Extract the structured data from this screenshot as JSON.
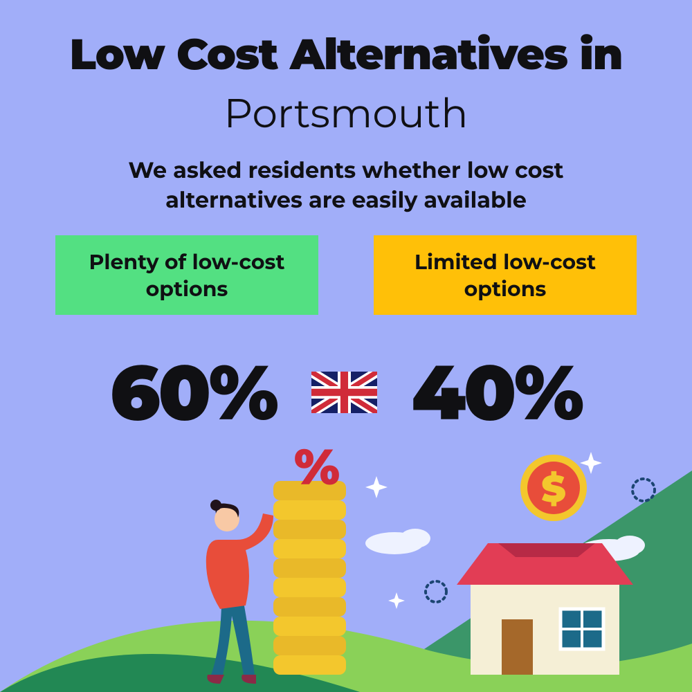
{
  "background_color": "#a1aef9",
  "title_color": "#101013",
  "text_color": "#101013",
  "title_main": "Low Cost Alternatives in",
  "title_main_fontsize": 62,
  "title_sub": "Portsmouth",
  "title_sub_fontsize": 58,
  "subtitle": "We asked residents whether low cost alternatives are easily available",
  "subtitle_fontsize": 32,
  "options": {
    "left": {
      "label": "Plenty of low-cost options",
      "bg": "#53e082",
      "fontsize": 30,
      "percent": "60%"
    },
    "right": {
      "label": "Limited low-cost options",
      "bg": "#ffc008",
      "fontsize": 30,
      "percent": "40%"
    }
  },
  "percent_fontsize": 110,
  "flag": {
    "base": "#152066",
    "red": "#d02b39",
    "white": "#ffffff"
  },
  "illustration": {
    "hill_dark": "#228854",
    "hill_light": "#8ad158",
    "sky_triangle": "#3b9669",
    "person_top": "#e84d3a",
    "person_bottom": "#1c6a89",
    "person_skin": "#f8c9a5",
    "person_hair": "#20131a",
    "person_shoe": "#8b2a47",
    "coin_a": "#f3c72d",
    "coin_b": "#e9b929",
    "percent_sym": "#d02b39",
    "house_wall": "#f5efd6",
    "house_roof": "#e23d55",
    "house_roof_top": "#b72a46",
    "house_window": "#1c6a89",
    "house_window_frame": "#ffffff",
    "door": "#a5682a",
    "cloud": "#eef2ff",
    "big_coin_outer": "#f3c72d",
    "big_coin_inner": "#e84d3a",
    "big_coin_dollar": "#f3c72d",
    "sparkle": "#ffffff",
    "dotted": "#1c4572"
  }
}
